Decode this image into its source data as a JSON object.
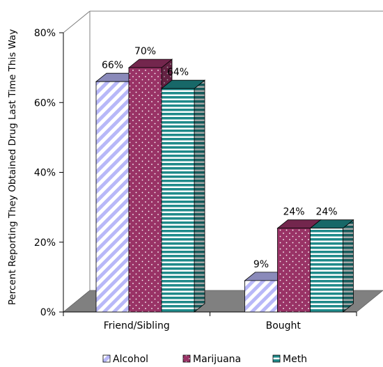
{
  "chart_data": {
    "type": "bar",
    "title": "",
    "xlabel": "",
    "ylabel": "Percent Reporting They Obtained Drug Last Time This Way",
    "categories": [
      "Friend/Sibling",
      "Bought"
    ],
    "series": [
      {
        "name": "Alcohol",
        "values": [
          66,
          9
        ],
        "labels": [
          "66%",
          "9%"
        ],
        "color": "#b8b8f8",
        "pattern": "diagonal-stripes"
      },
      {
        "name": "Marijuana",
        "values": [
          70,
          24
        ],
        "labels": [
          "70%",
          "24%"
        ],
        "color": "#993366",
        "pattern": "dots"
      },
      {
        "name": "Meth",
        "values": [
          64,
          24
        ],
        "labels": [
          "64%",
          "24%"
        ],
        "color": "#1f8a8a",
        "pattern": "horizontal-stripes"
      }
    ],
    "ylim": [
      0,
      80
    ],
    "yticks": [
      0,
      20,
      40,
      60,
      80
    ],
    "ytick_labels": [
      "0%",
      "20%",
      "40%",
      "60%",
      "80%"
    ],
    "grid": false,
    "three_d": true,
    "legend_position": "bottom",
    "floor_color": "#808080"
  }
}
